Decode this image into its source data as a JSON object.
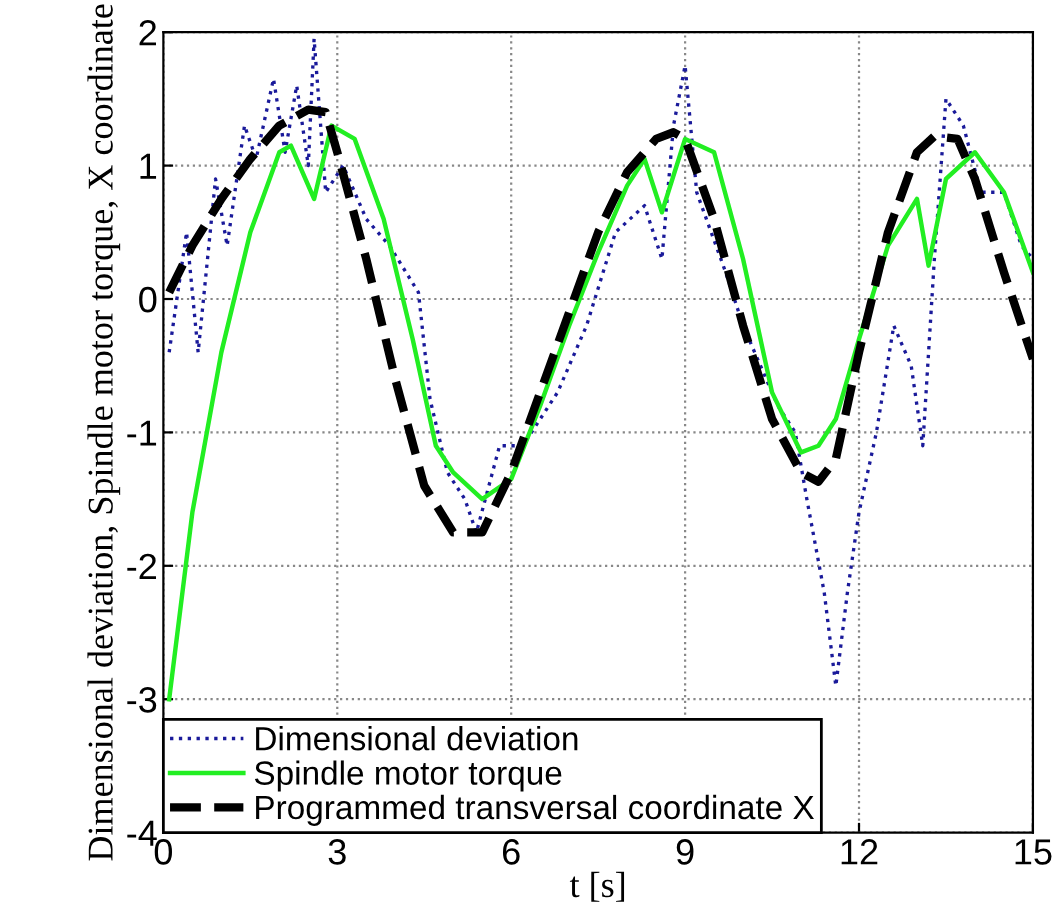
{
  "chart_data": {
    "type": "line",
    "xlabel": "t [s]",
    "ylabel": "Dimensional deviation, Spindle motor torque, X coordinate",
    "xlim": [
      0,
      15
    ],
    "ylim": [
      -4,
      2
    ],
    "xticks": [
      0,
      3,
      6,
      9,
      12,
      15
    ],
    "yticks": [
      -4,
      -3,
      -2,
      -1,
      0,
      1,
      2
    ],
    "grid": true,
    "legend": "bottom left",
    "series": [
      {
        "name": "Dimensional deviation",
        "color": "#1a1a9a",
        "line_style": "dotted",
        "x": [
          0.1,
          0.4,
          0.6,
          0.9,
          1.1,
          1.4,
          1.6,
          1.9,
          2.1,
          2.3,
          2.5,
          2.6,
          2.8,
          3.1,
          3.5,
          3.9,
          4.4,
          4.6,
          4.9,
          5.2,
          5.4,
          5.8,
          6.2,
          6.8,
          7.3,
          7.8,
          8.3,
          8.6,
          8.8,
          9,
          9.2,
          9.7,
          10,
          10.3,
          10.6,
          10.9,
          11.1,
          11.4,
          11.6,
          11.8,
          12,
          12.3,
          12.6,
          12.9,
          13.1,
          13.3,
          13.5,
          13.8,
          14.1,
          14.5,
          14.8,
          15
        ],
        "values": [
          -0.4,
          0.5,
          -0.4,
          0.9,
          0.4,
          1.3,
          1.05,
          1.65,
          1.1,
          1.6,
          1.0,
          1.95,
          0.8,
          1.0,
          0.6,
          0.4,
          0.05,
          -0.75,
          -1.3,
          -1.5,
          -1.75,
          -1.1,
          -1.1,
          -0.7,
          -0.2,
          0.5,
          0.7,
          0.3,
          1.3,
          1.75,
          0.8,
          0.2,
          -0.2,
          -0.5,
          -0.8,
          -1.0,
          -1.5,
          -2.2,
          -2.9,
          -2.2,
          -1.6,
          -1.0,
          -0.2,
          -0.5,
          -1.1,
          0.3,
          1.5,
          1.3,
          0.8,
          0.8,
          0.4,
          0.3
        ]
      },
      {
        "name": "Spindle motor torque",
        "color": "#22ee22",
        "line_style": "solid",
        "x": [
          0.1,
          0.5,
          1,
          1.5,
          2,
          2.2,
          2.6,
          2.9,
          3.3,
          3.8,
          4.3,
          4.7,
          5,
          5.5,
          6,
          6.5,
          7,
          7.5,
          8,
          8.3,
          8.6,
          9,
          9.5,
          10,
          10.5,
          11,
          11.3,
          11.6,
          12,
          12.5,
          13,
          13.2,
          13.5,
          14,
          14.5,
          15
        ],
        "values": [
          -3,
          -1.6,
          -0.4,
          0.5,
          1.1,
          1.15,
          0.75,
          1.3,
          1.2,
          0.6,
          -0.3,
          -1.1,
          -1.3,
          -1.5,
          -1.35,
          -0.8,
          -0.2,
          0.35,
          0.85,
          1.05,
          0.65,
          1.2,
          1.1,
          0.3,
          -0.7,
          -1.15,
          -1.1,
          -0.9,
          -0.3,
          0.4,
          0.75,
          0.25,
          0.9,
          1.1,
          0.8,
          0.2
        ]
      },
      {
        "name": "Programmed transversal coordinate X",
        "color": "#000000",
        "line_style": "dashed",
        "x": [
          0.1,
          0.5,
          1,
          1.5,
          2,
          2.5,
          2.8,
          3,
          3.5,
          4,
          4.5,
          5,
          5.5,
          6,
          6.5,
          7,
          7.5,
          8,
          8.5,
          8.8,
          9,
          9.5,
          10,
          10.5,
          11,
          11.3,
          11.6,
          12,
          12.5,
          13,
          13.3,
          13.7,
          14,
          14.5,
          15
        ],
        "values": [
          0.05,
          0.4,
          0.75,
          1.05,
          1.3,
          1.42,
          1.4,
          1.1,
          0.3,
          -0.6,
          -1.4,
          -1.75,
          -1.75,
          -1.3,
          -0.7,
          -0.1,
          0.5,
          0.95,
          1.2,
          1.25,
          1.2,
          0.6,
          -0.2,
          -0.9,
          -1.3,
          -1.37,
          -1.2,
          -0.4,
          0.5,
          1.1,
          1.22,
          1.2,
          0.9,
          0.2,
          -0.45
        ]
      }
    ]
  }
}
